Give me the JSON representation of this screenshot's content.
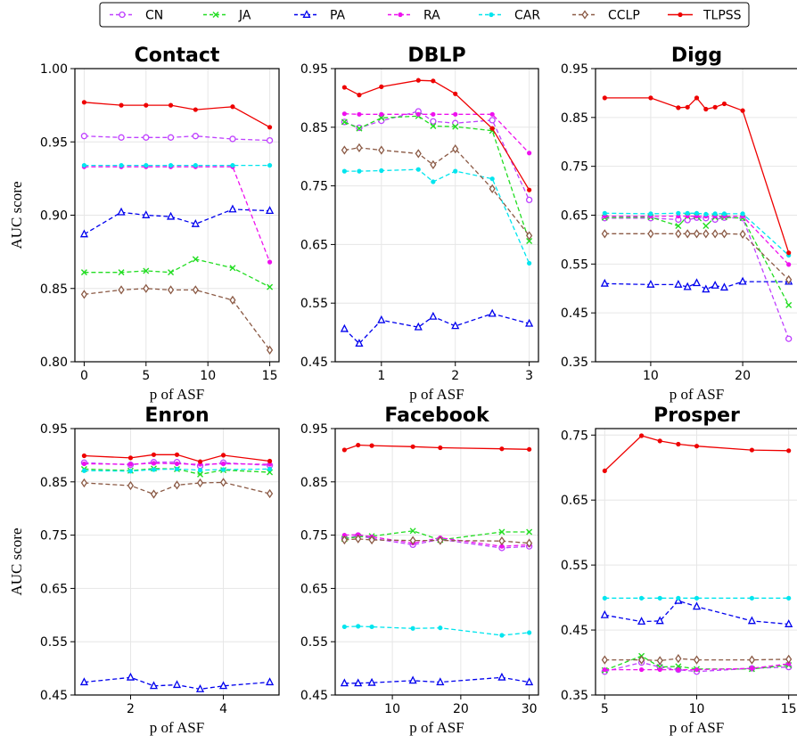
{
  "legend": [
    {
      "name": "CN",
      "color": "#bf40ff",
      "marker": "circle"
    },
    {
      "name": "JA",
      "color": "#22dd22",
      "marker": "x"
    },
    {
      "name": "PA",
      "color": "#0000ee",
      "marker": "triangle"
    },
    {
      "name": "RA",
      "color": "#ee10ee",
      "marker": "point"
    },
    {
      "name": "CAR",
      "color": "#00e5ee",
      "marker": "point"
    },
    {
      "name": "CCLP",
      "color": "#8b5a45",
      "marker": "diamond"
    },
    {
      "name": "TLPSS",
      "color": "#ee0000",
      "marker": "point"
    }
  ],
  "chart_data": [
    {
      "type": "line",
      "title": "Contact",
      "xlabel": "p of ASF",
      "ylabel": "AUC score",
      "xlim": [
        -0.75,
        15.75
      ],
      "ylim": [
        0.8,
        1.0
      ],
      "xticks": [
        0,
        5,
        10,
        15
      ],
      "xtick_labels": [
        "0",
        "5",
        "10",
        "15"
      ],
      "yticks": [
        0.8,
        0.85,
        0.9,
        0.95,
        1.0
      ],
      "ytick_labels": [
        "0.80",
        "0.85",
        "0.90",
        "0.95",
        "1.00"
      ],
      "x": [
        0,
        3,
        5,
        7,
        9,
        12,
        15
      ],
      "series": [
        {
          "name": "CN",
          "values": [
            0.954,
            0.953,
            0.953,
            0.953,
            0.954,
            0.952,
            0.951
          ]
        },
        {
          "name": "JA",
          "values": [
            0.861,
            0.861,
            0.862,
            0.861,
            0.87,
            0.864,
            0.851
          ]
        },
        {
          "name": "PA",
          "values": [
            0.887,
            0.902,
            0.9,
            0.899,
            0.894,
            0.904,
            0.903
          ]
        },
        {
          "name": "RA",
          "values": [
            0.933,
            0.933,
            0.933,
            0.933,
            0.933,
            0.933,
            0.868
          ]
        },
        {
          "name": "CAR",
          "values": [
            0.934,
            0.934,
            0.934,
            0.934,
            0.934,
            0.934,
            0.934
          ]
        },
        {
          "name": "CCLP",
          "values": [
            0.846,
            0.849,
            0.85,
            0.849,
            0.849,
            0.842,
            0.808
          ]
        },
        {
          "name": "TLPSS",
          "values": [
            0.977,
            0.975,
            0.975,
            0.975,
            0.972,
            0.974,
            0.96
          ]
        }
      ]
    },
    {
      "type": "line",
      "title": "DBLP",
      "xlabel": "p of ASF",
      "ylabel": "",
      "xlim": [
        0.375,
        3.125
      ],
      "ylim": [
        0.45,
        0.95
      ],
      "xticks": [
        1,
        2,
        3
      ],
      "xtick_labels": [
        "1",
        "2",
        "3"
      ],
      "yticks": [
        0.45,
        0.55,
        0.65,
        0.75,
        0.85,
        0.95
      ],
      "ytick_labels": [
        "0.45",
        "0.55",
        "0.65",
        "0.75",
        "0.85",
        "0.95"
      ],
      "x": [
        0.5,
        0.7,
        1.0,
        1.5,
        1.7,
        2.0,
        2.5,
        3.0
      ],
      "series": [
        {
          "name": "CN",
          "values": [
            0.859,
            0.849,
            0.861,
            0.877,
            0.86,
            0.857,
            0.862,
            0.726
          ]
        },
        {
          "name": "JA",
          "values": [
            0.859,
            0.848,
            0.866,
            0.869,
            0.852,
            0.851,
            0.844,
            0.656
          ]
        },
        {
          "name": "PA",
          "values": [
            0.506,
            0.481,
            0.521,
            0.509,
            0.527,
            0.511,
            0.532,
            0.515
          ]
        },
        {
          "name": "RA",
          "values": [
            0.873,
            0.872,
            0.872,
            0.872,
            0.872,
            0.872,
            0.872,
            0.806
          ]
        },
        {
          "name": "CAR",
          "values": [
            0.775,
            0.775,
            0.776,
            0.778,
            0.757,
            0.775,
            0.762,
            0.618
          ]
        },
        {
          "name": "CCLP",
          "values": [
            0.811,
            0.815,
            0.811,
            0.805,
            0.786,
            0.813,
            0.745,
            0.665
          ]
        },
        {
          "name": "TLPSS",
          "values": [
            0.918,
            0.905,
            0.919,
            0.93,
            0.929,
            0.907,
            0.848,
            0.743
          ]
        }
      ]
    },
    {
      "type": "line",
      "title": "Digg",
      "xlabel": "p of ASF",
      "ylabel": "",
      "xlim": [
        4,
        26
      ],
      "ylim": [
        0.35,
        0.95
      ],
      "xticks": [
        10,
        20
      ],
      "xtick_labels": [
        "10",
        "20"
      ],
      "yticks": [
        0.35,
        0.45,
        0.55,
        0.65,
        0.75,
        0.85,
        0.95
      ],
      "ytick_labels": [
        "0.35",
        "0.45",
        "0.55",
        "0.65",
        "0.75",
        "0.85",
        "0.95"
      ],
      "x": [
        5,
        10,
        13,
        14,
        15,
        16,
        17,
        18,
        20,
        25
      ],
      "series": [
        {
          "name": "CN",
          "values": [
            0.644,
            0.644,
            0.641,
            0.64,
            0.645,
            0.644,
            0.641,
            0.645,
            0.644,
            0.397
          ]
        },
        {
          "name": "JA",
          "values": [
            0.645,
            0.646,
            0.628,
            0.648,
            0.648,
            0.628,
            0.646,
            0.646,
            0.644,
            0.466
          ]
        },
        {
          "name": "PA",
          "values": [
            0.51,
            0.508,
            0.508,
            0.503,
            0.511,
            0.498,
            0.506,
            0.502,
            0.514,
            0.514
          ]
        },
        {
          "name": "RA",
          "values": [
            0.648,
            0.648,
            0.648,
            0.648,
            0.648,
            0.648,
            0.648,
            0.648,
            0.648,
            0.549
          ]
        },
        {
          "name": "CAR",
          "values": [
            0.654,
            0.653,
            0.654,
            0.654,
            0.654,
            0.652,
            0.653,
            0.653,
            0.653,
            0.568
          ]
        },
        {
          "name": "CCLP",
          "values": [
            0.612,
            0.612,
            0.612,
            0.612,
            0.612,
            0.612,
            0.612,
            0.612,
            0.611,
            0.518
          ]
        },
        {
          "name": "TLPSS",
          "values": [
            0.89,
            0.89,
            0.87,
            0.871,
            0.89,
            0.867,
            0.871,
            0.878,
            0.864,
            0.573
          ]
        }
      ]
    },
    {
      "type": "line",
      "title": "Enron",
      "xlabel": "p of ASF",
      "ylabel": "AUC score",
      "xlim": [
        0.8,
        5.2
      ],
      "ylim": [
        0.45,
        0.95
      ],
      "xticks": [
        2,
        4
      ],
      "xtick_labels": [
        "2",
        "4"
      ],
      "yticks": [
        0.45,
        0.55,
        0.65,
        0.75,
        0.85,
        0.95
      ],
      "ytick_labels": [
        "0.45",
        "0.55",
        "0.65",
        "0.75",
        "0.85",
        "0.95"
      ],
      "x": [
        1.0,
        2.0,
        2.5,
        3.0,
        3.5,
        4.0,
        5.0
      ],
      "series": [
        {
          "name": "CN",
          "values": [
            0.886,
            0.882,
            0.887,
            0.887,
            0.88,
            0.886,
            0.881
          ]
        },
        {
          "name": "JA",
          "values": [
            0.874,
            0.871,
            0.875,
            0.874,
            0.864,
            0.872,
            0.868
          ]
        },
        {
          "name": "PA",
          "values": [
            0.474,
            0.483,
            0.467,
            0.469,
            0.461,
            0.467,
            0.474
          ]
        },
        {
          "name": "RA",
          "values": [
            0.884,
            0.883,
            0.885,
            0.884,
            0.883,
            0.884,
            0.883
          ]
        },
        {
          "name": "CAR",
          "values": [
            0.871,
            0.87,
            0.873,
            0.874,
            0.872,
            0.873,
            0.874
          ]
        },
        {
          "name": "CCLP",
          "values": [
            0.848,
            0.843,
            0.827,
            0.844,
            0.848,
            0.849,
            0.828
          ]
        },
        {
          "name": "TLPSS",
          "values": [
            0.899,
            0.895,
            0.901,
            0.901,
            0.888,
            0.9,
            0.889
          ]
        }
      ]
    },
    {
      "type": "line",
      "title": "Facebook",
      "xlabel": "p of ASF",
      "ylabel": "",
      "xlim": [
        1.65,
        31.35
      ],
      "ylim": [
        0.45,
        0.95
      ],
      "xticks": [
        10,
        20,
        30
      ],
      "xtick_labels": [
        "10",
        "20",
        "30"
      ],
      "yticks": [
        0.45,
        0.55,
        0.65,
        0.75,
        0.85,
        0.95
      ],
      "ytick_labels": [
        "0.45",
        "0.55",
        "0.65",
        "0.75",
        "0.85",
        "0.95"
      ],
      "x": [
        3,
        5,
        7,
        13,
        17,
        26,
        30
      ],
      "series": [
        {
          "name": "CN",
          "values": [
            0.744,
            0.749,
            0.744,
            0.732,
            0.742,
            0.726,
            0.729
          ]
        },
        {
          "name": "JA",
          "values": [
            0.743,
            0.747,
            0.748,
            0.758,
            0.741,
            0.756,
            0.756
          ]
        },
        {
          "name": "PA",
          "values": [
            0.472,
            0.472,
            0.473,
            0.477,
            0.474,
            0.483,
            0.474
          ]
        },
        {
          "name": "RA",
          "values": [
            0.75,
            0.751,
            0.747,
            0.735,
            0.745,
            0.729,
            0.732
          ]
        },
        {
          "name": "CAR",
          "values": [
            0.578,
            0.579,
            0.578,
            0.575,
            0.576,
            0.562,
            0.567
          ]
        },
        {
          "name": "CCLP",
          "values": [
            0.741,
            0.743,
            0.741,
            0.74,
            0.74,
            0.739,
            0.735
          ]
        },
        {
          "name": "TLPSS",
          "values": [
            0.91,
            0.919,
            0.918,
            0.916,
            0.914,
            0.912,
            0.911
          ]
        }
      ]
    },
    {
      "type": "line",
      "title": "Prosper",
      "xlabel": "p of ASF",
      "ylabel": "",
      "xlim": [
        4.5,
        15.5
      ],
      "ylim": [
        0.35,
        0.76
      ],
      "xticks": [
        5,
        10,
        15
      ],
      "xtick_labels": [
        "5",
        "10",
        "15"
      ],
      "yticks": [
        0.35,
        0.45,
        0.55,
        0.65,
        0.75
      ],
      "ytick_labels": [
        "0.35",
        "0.45",
        "0.55",
        "0.65",
        "0.75"
      ],
      "x": [
        5,
        7,
        8,
        9,
        10,
        13,
        15
      ],
      "series": [
        {
          "name": "CN",
          "values": [
            0.386,
            0.4,
            0.393,
            0.389,
            0.386,
            0.391,
            0.393
          ]
        },
        {
          "name": "JA",
          "values": [
            0.388,
            0.41,
            0.393,
            0.394,
            0.39,
            0.39,
            0.396
          ]
        },
        {
          "name": "PA",
          "values": [
            0.473,
            0.463,
            0.464,
            0.495,
            0.486,
            0.464,
            0.459
          ]
        },
        {
          "name": "RA",
          "values": [
            0.389,
            0.389,
            0.389,
            0.389,
            0.389,
            0.391,
            0.398
          ]
        },
        {
          "name": "CAR",
          "values": [
            0.499,
            0.499,
            0.499,
            0.499,
            0.499,
            0.499,
            0.499
          ]
        },
        {
          "name": "CCLP",
          "values": [
            0.404,
            0.404,
            0.403,
            0.406,
            0.404,
            0.404,
            0.405
          ]
        },
        {
          "name": "TLPSS",
          "values": [
            0.695,
            0.749,
            0.741,
            0.736,
            0.733,
            0.727,
            0.726
          ]
        }
      ]
    }
  ]
}
